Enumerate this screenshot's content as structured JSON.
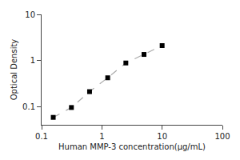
{
  "chart_data": {
    "type": "line",
    "xlabel": "Human MMP-3 concentration(μg/mL)",
    "ylabel": "Optical Density",
    "x": [
      0.156,
      0.3125,
      0.625,
      1.25,
      2.5,
      5.0,
      10.0
    ],
    "series": [
      {
        "type": "line",
        "color": "#aaaaaa",
        "line_style": "dashed",
        "values": [
          0.058,
          0.095,
          0.21,
          0.42,
          0.88,
          1.35,
          2.1
        ]
      },
      {
        "type": "scatter",
        "color": "black",
        "marker": "square",
        "values": [
          0.058,
          0.095,
          0.21,
          0.42,
          0.88,
          1.35,
          2.1
        ]
      }
    ],
    "log": true,
    "xlim": [
      0.1,
      100
    ],
    "ylim": [
      0.04,
      10
    ],
    "xticks": [
      0.1,
      1,
      10,
      100
    ],
    "yticks": [
      0.1,
      1,
      10
    ],
    "grid": false
  }
}
